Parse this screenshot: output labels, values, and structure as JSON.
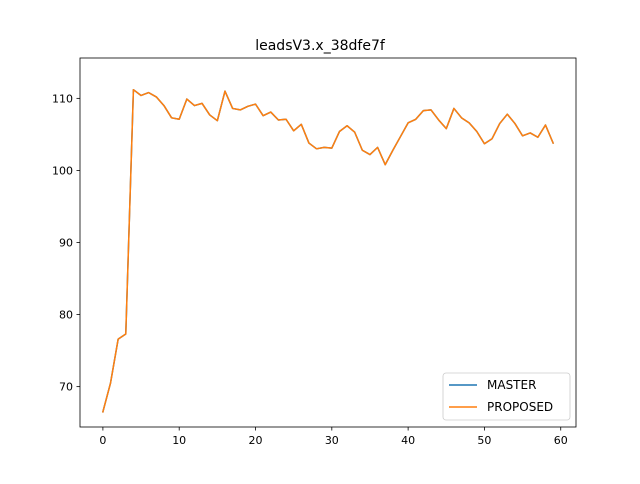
{
  "chart_data": {
    "type": "line",
    "title": "leadsV3.x_38dfe7f",
    "xlabel": "",
    "ylabel": "",
    "xlim": [
      -3,
      62
    ],
    "ylim": [
      64.4,
      115.6
    ],
    "x_ticks": [
      0,
      10,
      20,
      30,
      40,
      50,
      60
    ],
    "y_ticks": [
      70,
      80,
      90,
      100,
      110
    ],
    "grid": false,
    "legend_position": "lower-right",
    "x": [
      0,
      1,
      2,
      3,
      4,
      5,
      6,
      7,
      8,
      9,
      10,
      11,
      12,
      13,
      14,
      15,
      16,
      17,
      18,
      19,
      20,
      21,
      22,
      23,
      24,
      25,
      26,
      27,
      28,
      29,
      30,
      31,
      32,
      33,
      34,
      35,
      36,
      37,
      38,
      39,
      40,
      41,
      42,
      43,
      44,
      45,
      46,
      47,
      48,
      49,
      50,
      51,
      52,
      53,
      54,
      55,
      56,
      57,
      58,
      59
    ],
    "series": [
      {
        "name": "MASTER",
        "color": "#1f77b4",
        "values": [
          66.5,
          70.5,
          76.6,
          77.3,
          111.2,
          110.4,
          110.8,
          110.2,
          109.0,
          107.3,
          107.1,
          109.9,
          109.0,
          109.3,
          107.7,
          106.9,
          111.0,
          108.6,
          108.4,
          108.9,
          109.2,
          107.6,
          108.1,
          107.0,
          107.1,
          105.5,
          106.4,
          103.8,
          103.0,
          103.2,
          103.1,
          105.4,
          106.2,
          105.3,
          102.8,
          102.2,
          103.2,
          100.8,
          102.8,
          104.7,
          106.6,
          107.1,
          108.3,
          108.4,
          107.0,
          105.8,
          108.6,
          107.3,
          106.6,
          105.4,
          103.7,
          104.4,
          106.5,
          107.8,
          106.5,
          104.8,
          105.2,
          104.6,
          106.3,
          103.8
        ]
      },
      {
        "name": "PROPOSED",
        "color": "#ff7f0e",
        "values": [
          66.5,
          70.5,
          76.6,
          77.3,
          111.2,
          110.4,
          110.8,
          110.2,
          109.0,
          107.3,
          107.1,
          109.9,
          109.0,
          109.3,
          107.7,
          106.9,
          111.0,
          108.6,
          108.4,
          108.9,
          109.2,
          107.6,
          108.1,
          107.0,
          107.1,
          105.5,
          106.4,
          103.8,
          103.0,
          103.2,
          103.1,
          105.4,
          106.2,
          105.3,
          102.8,
          102.2,
          103.2,
          100.8,
          102.8,
          104.7,
          106.6,
          107.1,
          108.3,
          108.4,
          107.0,
          105.8,
          108.6,
          107.3,
          106.6,
          105.4,
          103.7,
          104.4,
          106.5,
          107.8,
          106.5,
          104.8,
          105.2,
          104.6,
          106.3,
          103.8
        ]
      }
    ]
  }
}
